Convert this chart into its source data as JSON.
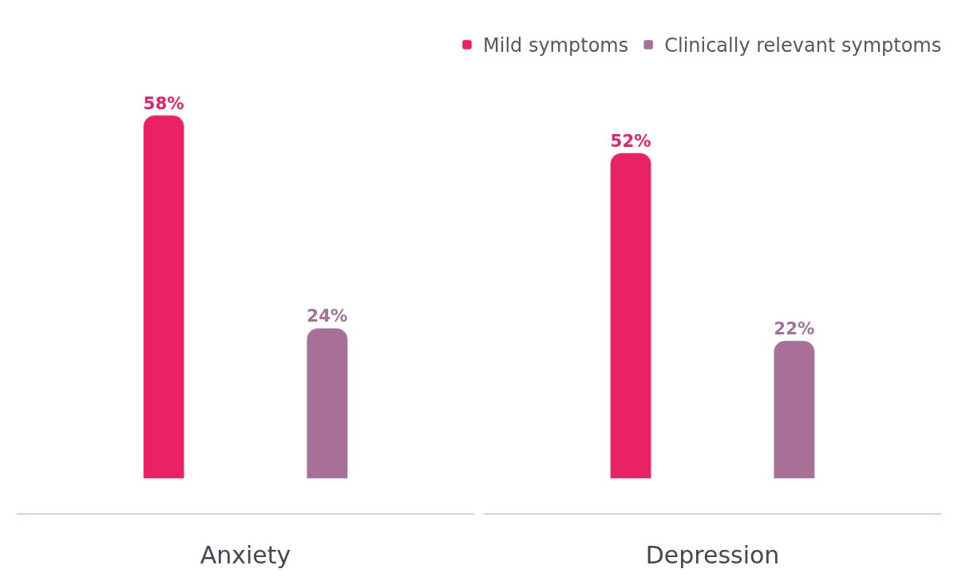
{
  "chart_data": {
    "type": "bar",
    "categories": [
      "Anxiety",
      "Depression"
    ],
    "series": [
      {
        "name": "Mild symptoms",
        "color": "#ea2264",
        "values": [
          58,
          52
        ],
        "value_labels": [
          "58%",
          "52%"
        ]
      },
      {
        "name": "Clinically relevant symptoms",
        "color": "#a87096",
        "values": [
          24,
          22
        ],
        "value_labels": [
          "24%",
          "22%"
        ]
      }
    ],
    "legend": "top right",
    "tick_labels": "x"
  }
}
